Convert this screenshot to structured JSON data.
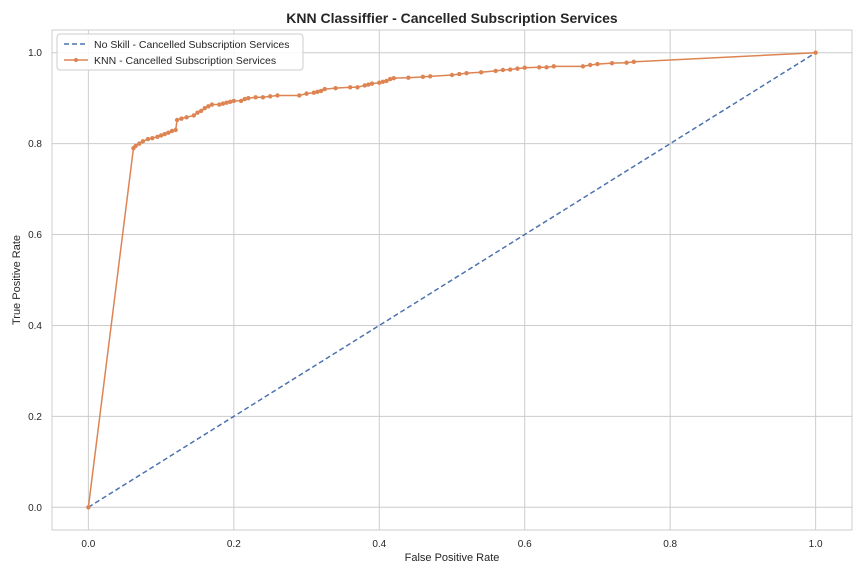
{
  "chart_data": {
    "type": "line",
    "title": "KNN Classiffier - Cancelled Subscription Services",
    "xlabel": "False Positive Rate",
    "ylabel": "True Positive Rate",
    "xlim": [
      -0.05,
      1.05
    ],
    "ylim": [
      -0.05,
      1.05
    ],
    "xticks": [
      "0.0",
      "0.2",
      "0.4",
      "0.6",
      "0.8",
      "1.0"
    ],
    "yticks": [
      "0.0",
      "0.2",
      "0.4",
      "0.6",
      "0.8",
      "1.0"
    ],
    "grid": true,
    "legend_position": "top-left",
    "series": [
      {
        "name": "No Skill - Cancelled Subscription Services",
        "color": "#4c72b0",
        "style": "dashed",
        "marker": "none",
        "x": [
          0,
          1
        ],
        "y": [
          0,
          1
        ]
      },
      {
        "name": "KNN - Cancelled Subscription Services",
        "color": "#dd8452",
        "style": "solid",
        "marker": "point",
        "x": [
          0,
          0.062,
          0.065,
          0.07,
          0.075,
          0.082,
          0.088,
          0.095,
          0.1,
          0.105,
          0.11,
          0.115,
          0.12,
          0.122,
          0.128,
          0.135,
          0.145,
          0.15,
          0.155,
          0.16,
          0.165,
          0.17,
          0.18,
          0.185,
          0.19,
          0.195,
          0.2,
          0.21,
          0.215,
          0.22,
          0.23,
          0.24,
          0.25,
          0.26,
          0.29,
          0.3,
          0.31,
          0.315,
          0.32,
          0.325,
          0.34,
          0.36,
          0.37,
          0.38,
          0.385,
          0.39,
          0.4,
          0.405,
          0.41,
          0.415,
          0.42,
          0.44,
          0.46,
          0.47,
          0.5,
          0.51,
          0.52,
          0.54,
          0.56,
          0.57,
          0.58,
          0.59,
          0.6,
          0.62,
          0.63,
          0.64,
          0.68,
          0.69,
          0.7,
          0.72,
          0.74,
          0.75,
          1.0
        ],
        "y": [
          0,
          0.79,
          0.795,
          0.8,
          0.805,
          0.81,
          0.812,
          0.815,
          0.818,
          0.821,
          0.824,
          0.828,
          0.83,
          0.852,
          0.855,
          0.858,
          0.862,
          0.868,
          0.872,
          0.878,
          0.882,
          0.886,
          0.886,
          0.888,
          0.89,
          0.892,
          0.894,
          0.894,
          0.898,
          0.9,
          0.902,
          0.902,
          0.904,
          0.906,
          0.906,
          0.91,
          0.912,
          0.914,
          0.916,
          0.92,
          0.922,
          0.924,
          0.924,
          0.928,
          0.93,
          0.932,
          0.934,
          0.936,
          0.938,
          0.942,
          0.944,
          0.945,
          0.947,
          0.948,
          0.951,
          0.953,
          0.955,
          0.957,
          0.96,
          0.962,
          0.963,
          0.965,
          0.967,
          0.968,
          0.968,
          0.97,
          0.97,
          0.973,
          0.975,
          0.977,
          0.978,
          0.98,
          1.0
        ]
      }
    ]
  },
  "colors": {
    "background": "#ffffff",
    "grid": "#cccccc",
    "spine": "#cccccc",
    "text": "#262626",
    "series_no_skill": "#4c72b0",
    "series_knn": "#dd8452"
  }
}
